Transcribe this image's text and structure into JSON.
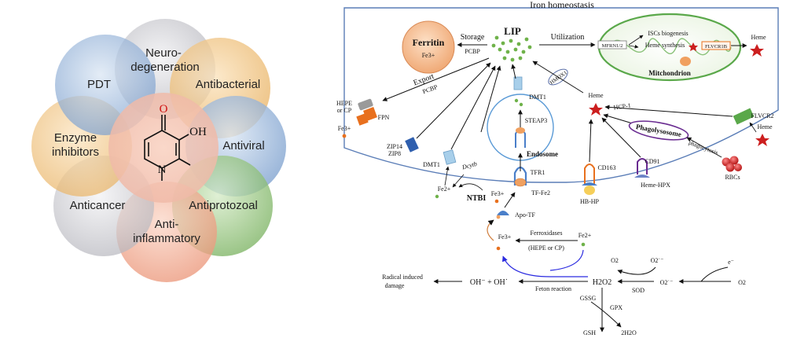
{
  "left_panel": {
    "center_molecule": {
      "O": "O",
      "OH": "OH",
      "N": "N"
    },
    "petals": [
      "Neuro-",
      "degeneration",
      "Antibacterial",
      "Antiviral",
      "Antiprotozoal",
      "Anti-",
      "inflammatory",
      "Anticancer",
      "Enzyme",
      "inhibitors",
      "PDT"
    ]
  },
  "right_panel": {
    "title": "Iron homeostasis",
    "ferritin": {
      "label": "Ferritin",
      "ion": "Fe3+"
    },
    "storage": "Storage",
    "pcbp_storage": "PCBP",
    "lip": "LIP",
    "utilization": "Utilization",
    "mitochondrion": {
      "label": "Mitchondrion",
      "mfrn": "MFRN1/2",
      "iscs": "ISCs biogenesis",
      "heme_synthesis": "Heme synthesis",
      "flvcr1b": "FLVCR1B",
      "heme_out": "Heme"
    },
    "export": "Export",
    "pcbp_export": "PCBP",
    "hmox1": "HMOX1",
    "dmt1_endo": "DMT1",
    "steap3": "STEAP3",
    "endosome": "Endosome",
    "hepe_cp": [
      "HEPE",
      "or CP"
    ],
    "fpn": "FPN",
    "fe_export": "Fe3+",
    "zip": [
      "ZIP14",
      "ZIP8"
    ],
    "dmt1_membrane": "DMT1",
    "dcytb": "Dcytb",
    "fe2_membrane": "Fe2+",
    "ntbi": "NTBI",
    "ntbi_fe": "Fe3+",
    "tfr1": "TFR1",
    "tf_fe2": "TF-Fe2",
    "apo_tf": "Apo-TF",
    "heme_inner": "Heme",
    "hcp1": "HCP-1",
    "phagolysosome": "Phagolysosome",
    "phagocytosis": "phagocytosis",
    "rbcs": "RBCs",
    "flvcr2": "FLVCR2",
    "heme_right": "Heme",
    "cd163": "CD163",
    "hb_hp": "HB-HP",
    "cd91": "CD91",
    "heme_hpx": "Heme-HPX",
    "ferroxidases": [
      "Ferroxidases",
      "(HEPE or CP)"
    ],
    "fe3_bottom": "Fe3+",
    "fe2_bottom": "Fe2+",
    "fenton": "Feton reaction",
    "radical": [
      "Radical induced",
      "damage"
    ],
    "oh_products": "OH⁻ + OH˙",
    "h2o2": "H2O2",
    "sod": "SOD",
    "o2_left": "O2",
    "o2_superoxide_top": "O2˙⁻",
    "o2_superoxide_mid": "O2˙⁻",
    "o2_right": "O2",
    "electron": "e⁻",
    "gssg": "GSSG",
    "gpx": "GPX",
    "gsh": "GSH",
    "water": "2H2O"
  },
  "colors": {
    "petal_gray": "#cfcfd4",
    "petal_orange": "#f3c27e",
    "petal_blue": "#8fb0d8",
    "petal_green": "#8fc07a",
    "petal_salmon": "#f0a58c",
    "ferritin_fill": "#f6c39a",
    "lip_green": "#6fb24a",
    "mito_green": "#5aa84a",
    "heme_red": "#cc1f1f",
    "phago_purple": "#6a2c91",
    "fpn_orange": "#e8701e",
    "arrow_blue": "#2a2ae0"
  }
}
